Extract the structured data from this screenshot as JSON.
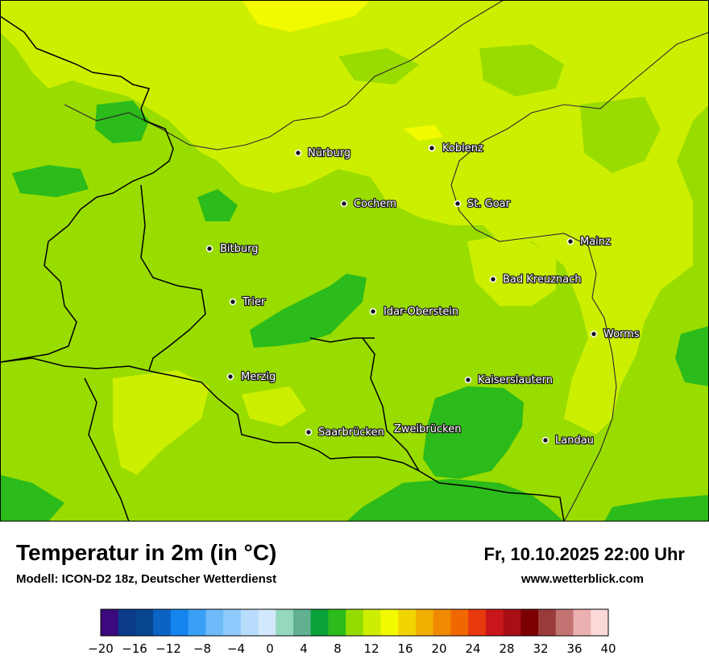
{
  "header": {
    "title": "Temperatur in 2m (in °C)",
    "model": "Modell: ICON-D2 18z, Deutscher Wetterdienst",
    "datetime": "Fr, 10.10.2025 22:00 Uhr",
    "website": "www.wetterblick.com"
  },
  "cities": [
    {
      "name": "Nürburg"
    },
    {
      "name": "Koblenz"
    },
    {
      "name": "Cochem"
    },
    {
      "name": "St. Goar"
    },
    {
      "name": "Bitburg"
    },
    {
      "name": "Mainz"
    },
    {
      "name": "Bad Kreuznach"
    },
    {
      "name": "Trier"
    },
    {
      "name": "Idar-Oberstein"
    },
    {
      "name": "Worms"
    },
    {
      "name": "Merzig"
    },
    {
      "name": "Kaiserslautern"
    },
    {
      "name": "Saarbrücken"
    },
    {
      "name": "Zweibrücken"
    },
    {
      "name": "Landau"
    }
  ],
  "legend": {
    "min": -20,
    "max": 40,
    "step": 2,
    "tick_labels": [
      "−20",
      "−16",
      "−12",
      "−8",
      "−4",
      "0",
      "4",
      "8",
      "12",
      "16",
      "20",
      "24",
      "28",
      "32",
      "36",
      "40"
    ],
    "colors": [
      "#3b0a7c",
      "#0b3a8a",
      "#07478f",
      "#0b63c4",
      "#1584ee",
      "#3aa0f6",
      "#6ebaf9",
      "#8ec9fb",
      "#b7dcfc",
      "#d2e8fd",
      "#94d9be",
      "#60b091",
      "#0aa03a",
      "#2bbb1a",
      "#94dc00",
      "#cdee00",
      "#f2fa00",
      "#f1d500",
      "#f1b000",
      "#f08a00",
      "#f16800",
      "#e8380d",
      "#c8161a",
      "#a80f15",
      "#7c0000",
      "#9a3a3a",
      "#c47373",
      "#ecb0b0",
      "#fcd9d9"
    ]
  }
}
